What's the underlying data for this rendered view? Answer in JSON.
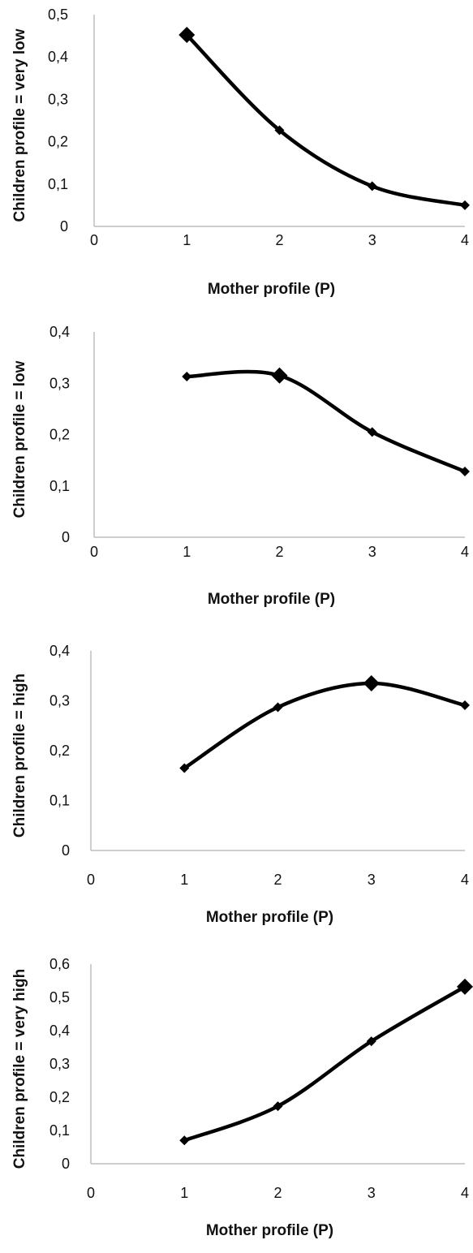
{
  "chart_data": [
    {
      "type": "line",
      "xlabel": "Mother profile (P)",
      "ylabel": "Children profile = very low",
      "xlim": [
        0,
        4
      ],
      "ylim": [
        0,
        0.5
      ],
      "x_ticks": [
        "0",
        "1",
        "2",
        "3",
        "4"
      ],
      "y_ticks": [
        "0",
        "0,1",
        "0,2",
        "0,3",
        "0,4",
        "0,5"
      ],
      "grid": false,
      "series": [
        {
          "x": [
            1,
            2,
            3,
            4
          ],
          "values": [
            0.452,
            0.227,
            0.095,
            0.05
          ],
          "color": "#000000",
          "highlight_index": 0
        }
      ]
    },
    {
      "type": "line",
      "xlabel": "Mother profile (P)",
      "ylabel": "Children profile = low",
      "xlim": [
        0,
        4
      ],
      "ylim": [
        0,
        0.4
      ],
      "x_ticks": [
        "0",
        "1",
        "2",
        "3",
        "4"
      ],
      "y_ticks": [
        "0",
        "0,1",
        "0,2",
        "0,3",
        "0,4"
      ],
      "grid": false,
      "series": [
        {
          "x": [
            1,
            2,
            3,
            4
          ],
          "values": [
            0.313,
            0.315,
            0.205,
            0.128
          ],
          "color": "#000000",
          "highlight_index": 1
        }
      ]
    },
    {
      "type": "line",
      "xlabel": "Mother profile (P)",
      "ylabel": "Children profile = high",
      "xlim": [
        0,
        4
      ],
      "ylim": [
        0,
        0.4
      ],
      "x_ticks": [
        "0",
        "1",
        "2",
        "3",
        "4"
      ],
      "y_ticks": [
        "0",
        "0,1",
        "0,2",
        "0,3",
        "0,4"
      ],
      "grid": false,
      "series": [
        {
          "x": [
            1,
            2,
            3,
            4
          ],
          "values": [
            0.165,
            0.287,
            0.335,
            0.291
          ],
          "color": "#000000",
          "highlight_index": 2
        }
      ]
    },
    {
      "type": "line",
      "xlabel": "Mother profile (P)",
      "ylabel": "Children profile = very high",
      "xlim": [
        0,
        4
      ],
      "ylim": [
        0,
        0.6
      ],
      "x_ticks": [
        "0",
        "1",
        "2",
        "3",
        "4"
      ],
      "y_ticks": [
        "0",
        "0,1",
        "0,2",
        "0,3",
        "0,4",
        "0,5",
        "0,6"
      ],
      "grid": false,
      "series": [
        {
          "x": [
            1,
            2,
            3,
            4
          ],
          "values": [
            0.07,
            0.173,
            0.368,
            0.532
          ],
          "color": "#000000",
          "highlight_index": 3
        }
      ]
    }
  ]
}
